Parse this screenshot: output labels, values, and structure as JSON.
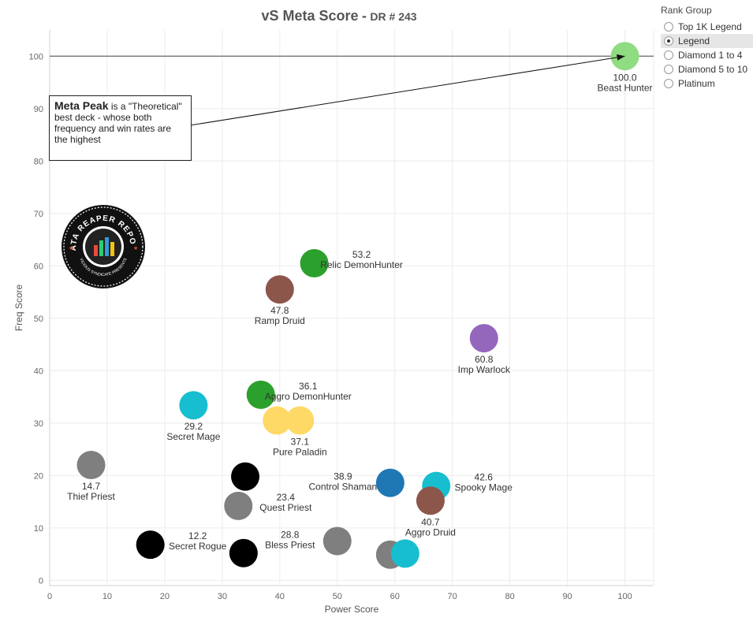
{
  "title": {
    "main": "vS Meta Score",
    "separator": "-",
    "sub": "DR # 243"
  },
  "legend": {
    "title": "Rank Group",
    "items": [
      {
        "label": "Top 1K Legend",
        "selected": false
      },
      {
        "label": "Legend",
        "selected": true
      },
      {
        "label": "Diamond 1 to 4",
        "selected": false
      },
      {
        "label": "Diamond 5 to 10",
        "selected": false
      },
      {
        "label": "Platinum",
        "selected": false
      }
    ]
  },
  "callout": {
    "bold": "Meta Peak",
    "text": " is a \"Theoretical\" best deck - whose both frequency and win rates are the highest"
  },
  "logo": {
    "top_text": "DATA REAPER REPORT",
    "bottom_text": "VICIOUS SYNDICATE PRESENTS"
  },
  "chart_data": {
    "type": "scatter",
    "title": "vS Meta Score",
    "xlabel": "Power Score",
    "ylabel": "Freq Score",
    "xlim": [
      0,
      105
    ],
    "ylim": [
      -1,
      105
    ],
    "x_ticks": [
      0,
      10,
      20,
      30,
      40,
      50,
      60,
      70,
      80,
      90,
      100
    ],
    "y_ticks": [
      0,
      10,
      20,
      30,
      40,
      50,
      60,
      70,
      80,
      90,
      100
    ],
    "grid": true,
    "reference_line": {
      "y": 100,
      "color": "#666666"
    },
    "points": [
      {
        "x": 100,
        "y": 100,
        "color": "#90dc82",
        "score": "100.0",
        "name": "Beast Hunter"
      },
      {
        "x": 46,
        "y": 60.5,
        "color": "#2ca02c",
        "score": "53.2",
        "name": "Relic DemonHunter"
      },
      {
        "x": 40,
        "y": 55.5,
        "color": "#8c564b",
        "score": "47.8",
        "name": "Ramp Druid"
      },
      {
        "x": 75.5,
        "y": 46.2,
        "color": "#9467bd",
        "score": "60.8",
        "name": "Imp Warlock"
      },
      {
        "x": 36.7,
        "y": 35.4,
        "color": "#2ca02c",
        "score": "36.1",
        "name": "Aggro DemonHunter"
      },
      {
        "x": 25,
        "y": 33.4,
        "color": "#17becf",
        "score": "29.2",
        "name": "Secret Mage"
      },
      {
        "x": 39.5,
        "y": 30.5,
        "color": "#ffd966",
        "score": "",
        "name": ""
      },
      {
        "x": 43.5,
        "y": 30.5,
        "color": "#ffd966",
        "score": "37.1",
        "name": "Pure Paladin"
      },
      {
        "x": 7.2,
        "y": 22,
        "color": "#7f7f7f",
        "score": "14.7",
        "name": "Thief Priest"
      },
      {
        "x": 34,
        "y": 19.8,
        "color": "#000000",
        "score": "",
        "name": ""
      },
      {
        "x": 59.2,
        "y": 18.6,
        "color": "#1f77b4",
        "score": "38.9",
        "name": "Control Shaman"
      },
      {
        "x": 67.2,
        "y": 18,
        "color": "#17becf",
        "score": "42.6",
        "name": "Spooky Mage"
      },
      {
        "x": 66.2,
        "y": 15.2,
        "color": "#8c564b",
        "score": "40.7",
        "name": "Aggro Druid"
      },
      {
        "x": 32.8,
        "y": 14.2,
        "color": "#7f7f7f",
        "score": "23.4",
        "name": "Quest Priest"
      },
      {
        "x": 50,
        "y": 7.5,
        "color": "#7f7f7f",
        "score": "28.8",
        "name": "Bless Priest"
      },
      {
        "x": 17.5,
        "y": 6.8,
        "color": "#000000",
        "score": "12.2",
        "name": "Secret Rogue"
      },
      {
        "x": 33.7,
        "y": 5.2,
        "color": "#000000",
        "score": "",
        "name": ""
      },
      {
        "x": 59.2,
        "y": 4.9,
        "color": "#7f7f7f",
        "score": "",
        "name": ""
      },
      {
        "x": 61.8,
        "y": 5.1,
        "color": "#17becf",
        "score": "",
        "name": ""
      }
    ]
  }
}
